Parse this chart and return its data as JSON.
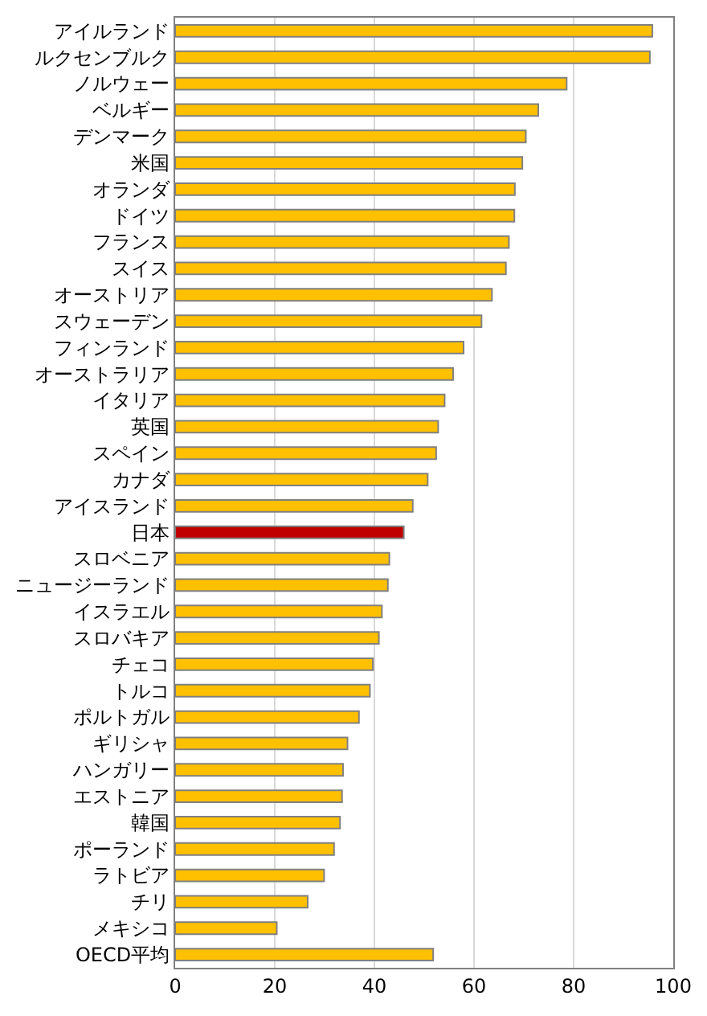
{
  "chart_data": {
    "type": "bar",
    "orientation": "horizontal",
    "categories": [
      "アイルランド",
      "ルクセンブルク",
      "ノルウェー",
      "ベルギー",
      "デンマーク",
      "米国",
      "オランダ",
      "ドイツ",
      "フランス",
      "スイス",
      "オーストリア",
      "スウェーデン",
      "フィンランド",
      "オーストラリア",
      "イタリア",
      "英国",
      "スペイン",
      "カナダ",
      "アイスランド",
      "日本",
      "スロベニア",
      "ニュージーランド",
      "イスラエル",
      "スロバキア",
      "チェコ",
      "トルコ",
      "ポルトガル",
      "ギリシャ",
      "ハンガリー",
      "エストニア",
      "韓国",
      "ポーランド",
      "ラトビア",
      "チリ",
      "メキシコ",
      "OECD平均"
    ],
    "values": [
      95.8,
      95.3,
      78.6,
      72.9,
      70.4,
      69.7,
      68.2,
      68.1,
      67.0,
      66.4,
      63.6,
      61.5,
      57.9,
      55.8,
      54.1,
      52.8,
      52.4,
      50.7,
      47.7,
      45.9,
      43.0,
      42.7,
      41.5,
      40.9,
      39.7,
      39.1,
      36.9,
      34.6,
      33.7,
      33.5,
      33.1,
      31.9,
      29.9,
      26.6,
      20.4,
      51.8
    ],
    "colors": [
      "#ffc000",
      "#ffc000",
      "#ffc000",
      "#ffc000",
      "#ffc000",
      "#ffc000",
      "#ffc000",
      "#ffc000",
      "#ffc000",
      "#ffc000",
      "#ffc000",
      "#ffc000",
      "#ffc000",
      "#ffc000",
      "#ffc000",
      "#ffc000",
      "#ffc000",
      "#ffc000",
      "#ffc000",
      "#c00000",
      "#ffc000",
      "#ffc000",
      "#ffc000",
      "#ffc000",
      "#ffc000",
      "#ffc000",
      "#ffc000",
      "#ffc000",
      "#ffc000",
      "#ffc000",
      "#ffc000",
      "#ffc000",
      "#ffc000",
      "#ffc000",
      "#ffc000",
      "#ffc000"
    ],
    "xlim": [
      0,
      100
    ],
    "xticks": [
      0,
      20,
      40,
      60,
      80,
      100
    ],
    "grid": "x"
  }
}
